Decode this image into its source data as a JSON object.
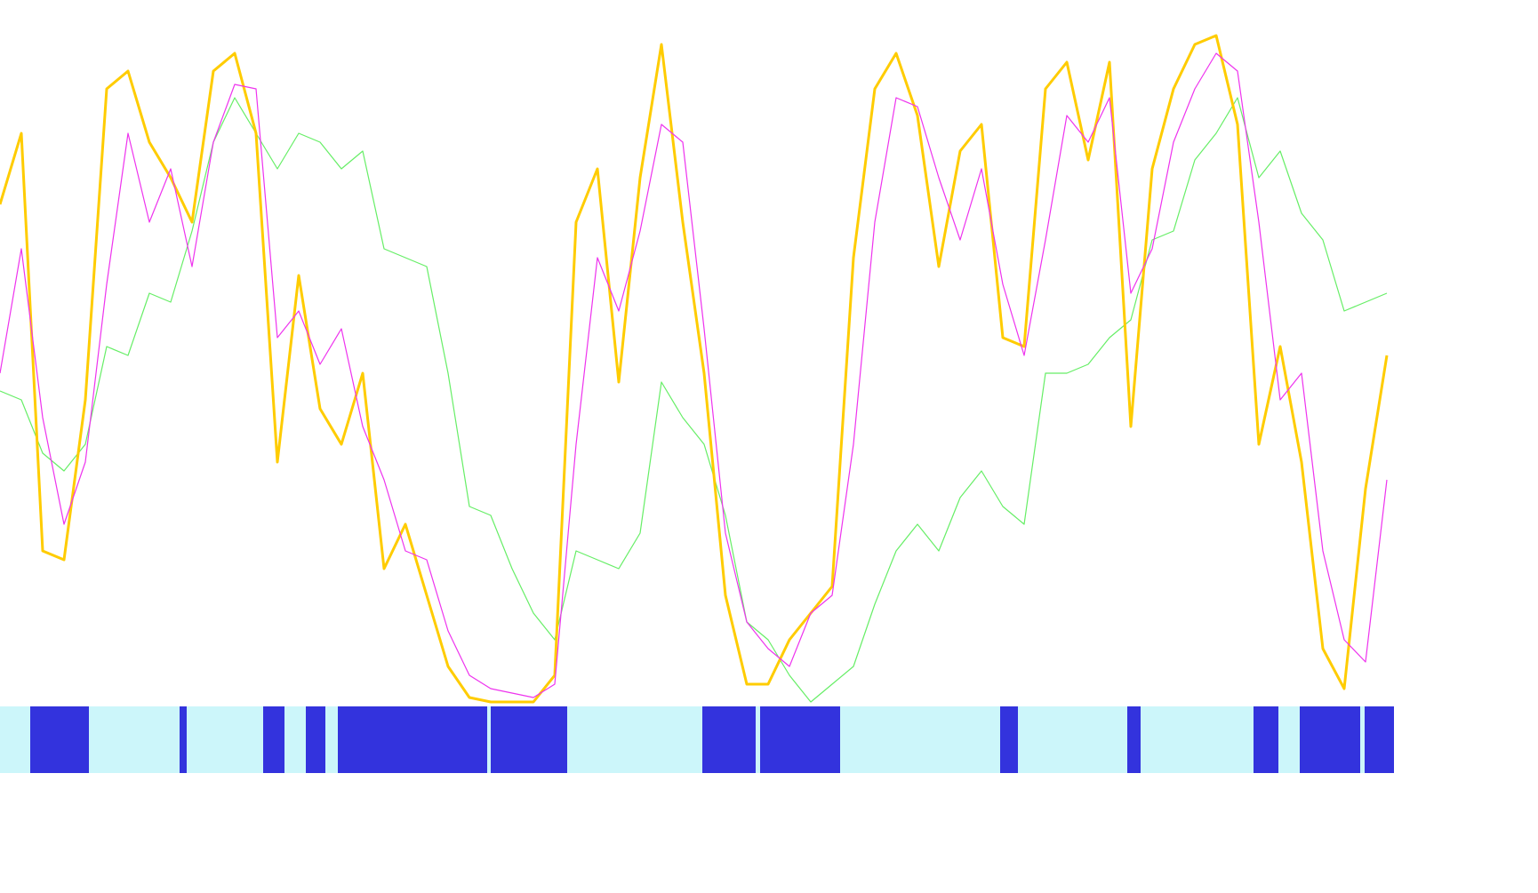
{
  "chart_data": {
    "type": "line",
    "x": [
      0,
      24,
      48,
      72,
      96,
      120,
      144,
      168,
      192,
      216,
      240,
      264,
      288,
      312,
      336,
      360,
      384,
      408,
      432,
      456,
      480,
      504,
      528,
      552,
      576,
      600,
      624,
      648,
      672,
      696,
      720,
      744,
      768,
      792,
      816,
      840,
      864,
      888,
      912,
      936,
      960,
      984,
      1008,
      1032,
      1056,
      1080,
      1104,
      1128,
      1152,
      1176,
      1200,
      1224,
      1248,
      1272,
      1296,
      1320,
      1344,
      1368,
      1392,
      1416,
      1440,
      1464,
      1488,
      1512,
      1536,
      1560
    ],
    "xlim": [
      0,
      1568
    ],
    "ylim": [
      0,
      760
    ],
    "series": [
      {
        "color": "#66ee66",
        "width": 1.2,
        "values": [
          360,
          350,
          290,
          270,
          300,
          410,
          400,
          470,
          460,
          540,
          640,
          690,
          650,
          610,
          650,
          640,
          610,
          630,
          520,
          510,
          500,
          380,
          230,
          220,
          160,
          110,
          80,
          180,
          170,
          160,
          200,
          370,
          330,
          300,
          220,
          100,
          80,
          40,
          10,
          30,
          50,
          120,
          180,
          210,
          180,
          240,
          270,
          230,
          210,
          380,
          380,
          390,
          420,
          440,
          530,
          540,
          620,
          650,
          690,
          600,
          630,
          560,
          530,
          450,
          460,
          470
        ]
      },
      {
        "color": "#ffcc00",
        "width": 3,
        "values": [
          570,
          650,
          180,
          170,
          350,
          700,
          720,
          640,
          600,
          550,
          720,
          740,
          650,
          280,
          490,
          340,
          300,
          380,
          160,
          210,
          130,
          50,
          15,
          10,
          10,
          10,
          40,
          550,
          610,
          370,
          600,
          750,
          550,
          380,
          130,
          30,
          30,
          80,
          110,
          140,
          510,
          700,
          740,
          670,
          500,
          630,
          660,
          420,
          410,
          700,
          730,
          620,
          730,
          320,
          610,
          700,
          750,
          760,
          660,
          300,
          410,
          280,
          70,
          25,
          250,
          400
        ]
      },
      {
        "color": "#ee33ee",
        "width": 1.2,
        "values": [
          380,
          520,
          330,
          210,
          280,
          480,
          650,
          550,
          610,
          500,
          640,
          705,
          700,
          420,
          450,
          390,
          430,
          320,
          260,
          180,
          170,
          90,
          40,
          25,
          20,
          15,
          30,
          300,
          510,
          450,
          540,
          660,
          640,
          430,
          200,
          100,
          70,
          50,
          110,
          130,
          300,
          550,
          690,
          680,
          600,
          530,
          610,
          480,
          400,
          530,
          670,
          640,
          690,
          470,
          520,
          640,
          700,
          740,
          720,
          550,
          350,
          380,
          180,
          80,
          55,
          260
        ]
      }
    ],
    "bands": {
      "color": "#3333dd",
      "background": "#ccf6fa",
      "ranges": [
        [
          34,
          100
        ],
        [
          202,
          210
        ],
        [
          296,
          320
        ],
        [
          344,
          366
        ],
        [
          380,
          548
        ],
        [
          552,
          638
        ],
        [
          790,
          850
        ],
        [
          855,
          945
        ],
        [
          1125,
          1145
        ],
        [
          1268,
          1283
        ],
        [
          1410,
          1438
        ],
        [
          1462,
          1530
        ],
        [
          1535,
          1568
        ]
      ]
    }
  }
}
